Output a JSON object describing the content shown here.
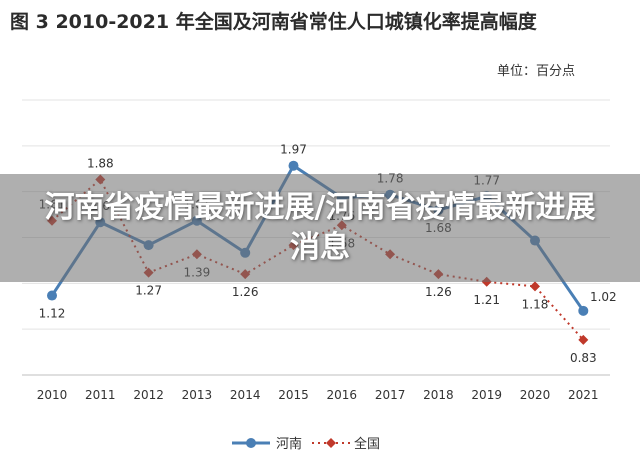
{
  "banner": {
    "text": "河南省疫情最新进展/河南省疫情最新进展消息"
  },
  "chart_data": {
    "type": "line",
    "title": "图 3    2010-2021 年全国及河南省常住人口城镇化率提高幅度",
    "unit": "单位：百分点",
    "categories": [
      "2010",
      "2011",
      "2012",
      "2013",
      "2014",
      "2015",
      "2016",
      "2017",
      "2018",
      "2019",
      "2020",
      "2021"
    ],
    "ylim": [
      0.6,
      2.4
    ],
    "grid": true,
    "legend": "bottom",
    "series": [
      {
        "name": "河南",
        "color": "#4a7fb5",
        "style": "solid",
        "values": [
          1.12,
          1.6,
          1.45,
          1.61,
          1.4,
          1.97,
          1.76,
          1.78,
          1.68,
          1.77,
          1.48,
          1.02
        ],
        "labels": [
          "1.12",
          "1.6",
          "",
          "1.61",
          "",
          "1.97",
          "1.76",
          "1.78",
          "1.68",
          "1.77",
          "",
          "1.02"
        ]
      },
      {
        "name": "全国",
        "color": "#c0392b",
        "style": "dotted",
        "values": [
          1.61,
          1.88,
          1.27,
          1.39,
          1.26,
          1.45,
          1.58,
          1.39,
          1.26,
          1.21,
          1.18,
          0.83
        ],
        "labels": [
          "1.61",
          "1.88",
          "1.27",
          "1.39",
          "1.26",
          "",
          "1.58",
          "",
          "1.26",
          "1.21",
          "1.18",
          "0.83"
        ]
      }
    ]
  }
}
